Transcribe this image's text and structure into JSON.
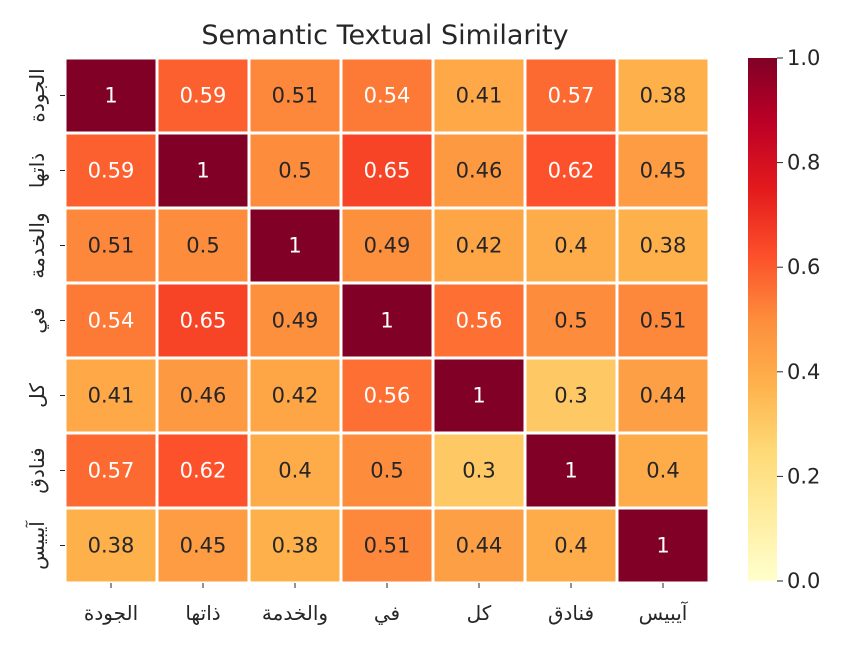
{
  "chart_data": {
    "type": "heatmap",
    "title": "Semantic Textual Similarity",
    "x_labels": [
      "الجودة",
      "ذاتها",
      "والخدمة",
      "في",
      "كل",
      "فنادق",
      "آيبيس"
    ],
    "y_labels": [
      "الجودة",
      "ذاتها",
      "والخدمة",
      "في",
      "كل",
      "فنادق",
      "آيبيس"
    ],
    "values": [
      [
        1,
        0.59,
        0.51,
        0.54,
        0.41,
        0.57,
        0.38
      ],
      [
        0.59,
        1,
        0.5,
        0.65,
        0.46,
        0.62,
        0.45
      ],
      [
        0.51,
        0.5,
        1,
        0.49,
        0.42,
        0.4,
        0.38
      ],
      [
        0.54,
        0.65,
        0.49,
        1,
        0.56,
        0.5,
        0.51
      ],
      [
        0.41,
        0.46,
        0.42,
        0.56,
        1,
        0.3,
        0.44
      ],
      [
        0.57,
        0.62,
        0.4,
        0.5,
        0.3,
        1,
        0.4
      ],
      [
        0.38,
        0.45,
        0.38,
        0.51,
        0.44,
        0.4,
        1
      ]
    ],
    "colormap": "YlOrRd",
    "vmin": 0,
    "vmax": 1,
    "colorbar_ticks": [
      "0.0",
      "0.2",
      "0.4",
      "0.6",
      "0.8",
      "1.0"
    ],
    "annotated": true,
    "colorbar_position": "right"
  }
}
